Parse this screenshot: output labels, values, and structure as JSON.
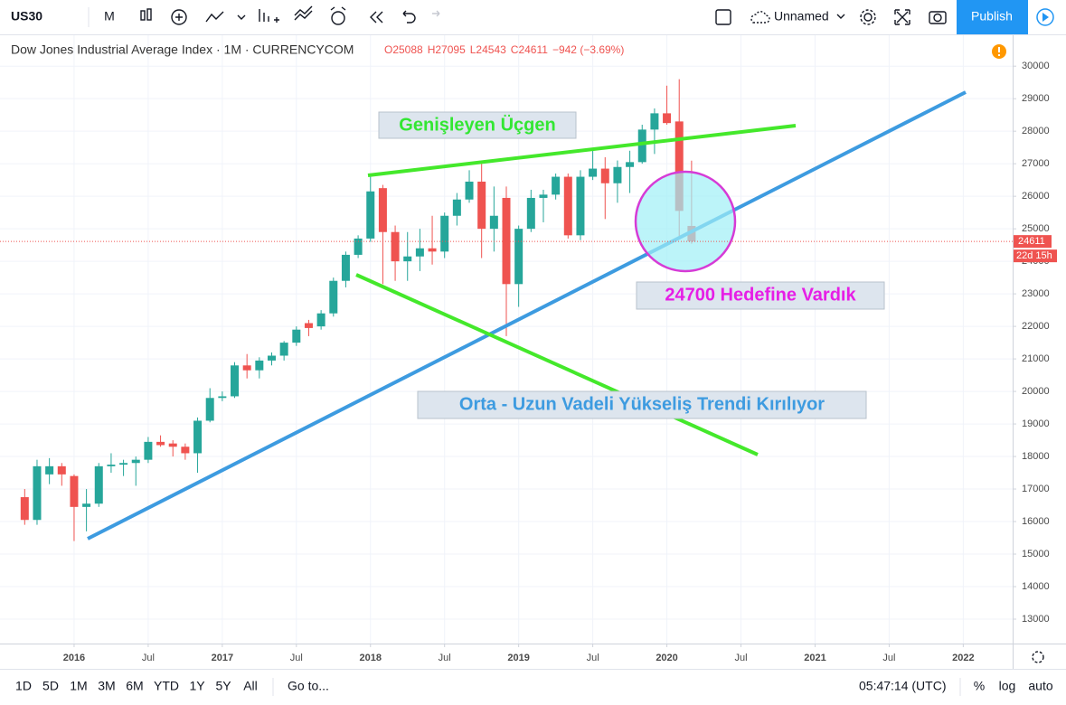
{
  "toolbar": {
    "symbol": "US30",
    "interval": "M",
    "layout_name": "Unnamed",
    "publish": "Publish"
  },
  "chart_data": {
    "type": "candlestick",
    "title": "Dow Jones Industrial Average Index · 1M · CURRENCYCOM",
    "legend_values": [
      "O25088",
      "H27095",
      "L24543",
      "C24611",
      "−942 (−3.69%)"
    ],
    "annotations": [
      "Genişleyen Üçgen",
      "24700 Hedefine Vardık",
      "Orta - Uzun Vadeli Yükseliş Trendi Kırılıyor"
    ],
    "countdown": "22d 15h",
    "up_color": "#26a69a",
    "down_color": "#ef5350",
    "grid": true,
    "x": [
      "2015-09",
      "2015-10",
      "2015-11",
      "2015-12",
      "2016-01",
      "2016-02",
      "2016-03",
      "2016-04",
      "2016-05",
      "2016-06",
      "2016-07",
      "2016-08",
      "2016-09",
      "2016-10",
      "2016-11",
      "2016-12",
      "2017-01",
      "2017-02",
      "2017-03",
      "2017-04",
      "2017-05",
      "2017-06",
      "2017-07",
      "2017-08",
      "2017-09",
      "2017-10",
      "2017-11",
      "2017-12",
      "2018-01",
      "2018-02",
      "2018-03",
      "2018-04",
      "2018-05",
      "2018-06",
      "2018-07",
      "2018-08",
      "2018-09",
      "2018-10",
      "2018-11",
      "2018-12",
      "2019-01",
      "2019-02",
      "2019-03",
      "2019-04",
      "2019-05",
      "2019-06",
      "2019-07",
      "2019-08",
      "2019-09",
      "2019-10",
      "2019-11",
      "2019-12",
      "2020-01",
      "2020-02",
      "2020-03"
    ],
    "open": [
      16750,
      16050,
      17450,
      17700,
      17400,
      16450,
      16550,
      17700,
      17750,
      17800,
      17900,
      18450,
      18400,
      18300,
      18100,
      19100,
      19800,
      19850,
      20800,
      20650,
      20950,
      21100,
      21500,
      22100,
      22000,
      22400,
      23400,
      24200,
      24700,
      26250,
      24900,
      24000,
      24150,
      24400,
      24300,
      25400,
      25900,
      26450,
      25000,
      25950,
      23300,
      25000,
      25950,
      26050,
      26600,
      24800,
      26600,
      26850,
      26400,
      26900,
      27050,
      28050,
      28550,
      28300,
      25088
    ],
    "high": [
      17000,
      17900,
      17950,
      17800,
      17450,
      17000,
      17800,
      18100,
      17900,
      18000,
      18600,
      18650,
      18500,
      18400,
      19200,
      20100,
      20000,
      20900,
      21150,
      21050,
      21200,
      21550,
      22000,
      22200,
      22500,
      23500,
      24300,
      24800,
      26600,
      26350,
      25100,
      24900,
      25000,
      25400,
      25500,
      26100,
      26800,
      27000,
      26300,
      26300,
      25100,
      26200,
      26200,
      26700,
      26700,
      26800,
      27400,
      27200,
      27100,
      27400,
      28200,
      28700,
      29400,
      29600,
      27095
    ],
    "low": [
      15900,
      15900,
      17150,
      17100,
      15400,
      15700,
      16450,
      17500,
      17400,
      17100,
      17800,
      18300,
      18000,
      17900,
      17500,
      19050,
      19700,
      19800,
      20400,
      20400,
      20800,
      20950,
      21400,
      21700,
      21900,
      22300,
      23200,
      24100,
      24600,
      23300,
      23400,
      23400,
      23700,
      23900,
      24100,
      25100,
      25800,
      24100,
      24300,
      21700,
      22600,
      24900,
      25200,
      25900,
      24700,
      24650,
      26500,
      25300,
      25800,
      26100,
      27000,
      27300,
      28200,
      24700,
      24543
    ],
    "close": [
      16050,
      17700,
      17700,
      17450,
      16450,
      16550,
      17700,
      17750,
      17800,
      17900,
      18450,
      18350,
      18300,
      18100,
      19100,
      19800,
      19850,
      20800,
      20650,
      20950,
      21100,
      21500,
      21900,
      21950,
      22400,
      23400,
      24200,
      24700,
      26150,
      24900,
      24000,
      24150,
      24400,
      24300,
      25400,
      25900,
      26450,
      25000,
      25400,
      23300,
      25000,
      25950,
      26050,
      26600,
      24800,
      26600,
      26850,
      26400,
      26900,
      27050,
      28050,
      28550,
      28250,
      25550,
      24611
    ],
    "xlim": [
      "2015-07",
      "2022-05"
    ],
    "xticks": [
      {
        "value": "2016-01",
        "label": "2016"
      },
      {
        "value": "2016-07",
        "label": "Jul"
      },
      {
        "value": "2017-01",
        "label": "2017"
      },
      {
        "value": "2017-07",
        "label": "Jul"
      },
      {
        "value": "2018-01",
        "label": "2018"
      },
      {
        "value": "2018-07",
        "label": "Jul"
      },
      {
        "value": "2019-01",
        "label": "2019"
      },
      {
        "value": "2019-07",
        "label": "Jul"
      },
      {
        "value": "2020-01",
        "label": "2020"
      },
      {
        "value": "2020-07",
        "label": "Jul"
      },
      {
        "value": "2021-01",
        "label": "2021"
      },
      {
        "value": "2021-07",
        "label": "Jul"
      },
      {
        "value": "2022-01",
        "label": "2022"
      }
    ],
    "ylim": [
      12250,
      30950
    ],
    "yticks": [
      13000,
      14000,
      15000,
      16000,
      17000,
      18000,
      19000,
      20000,
      21000,
      22000,
      23000,
      24000,
      25000,
      26000,
      27000,
      28000,
      29000,
      30000
    ]
  },
  "bottom_bar": {
    "ranges": [
      "1D",
      "5D",
      "1M",
      "3M",
      "6M",
      "YTD",
      "1Y",
      "5Y",
      "All"
    ],
    "goto": "Go to...",
    "time": "05:47:14 (UTC)",
    "options": [
      "%",
      "log",
      "auto"
    ]
  }
}
